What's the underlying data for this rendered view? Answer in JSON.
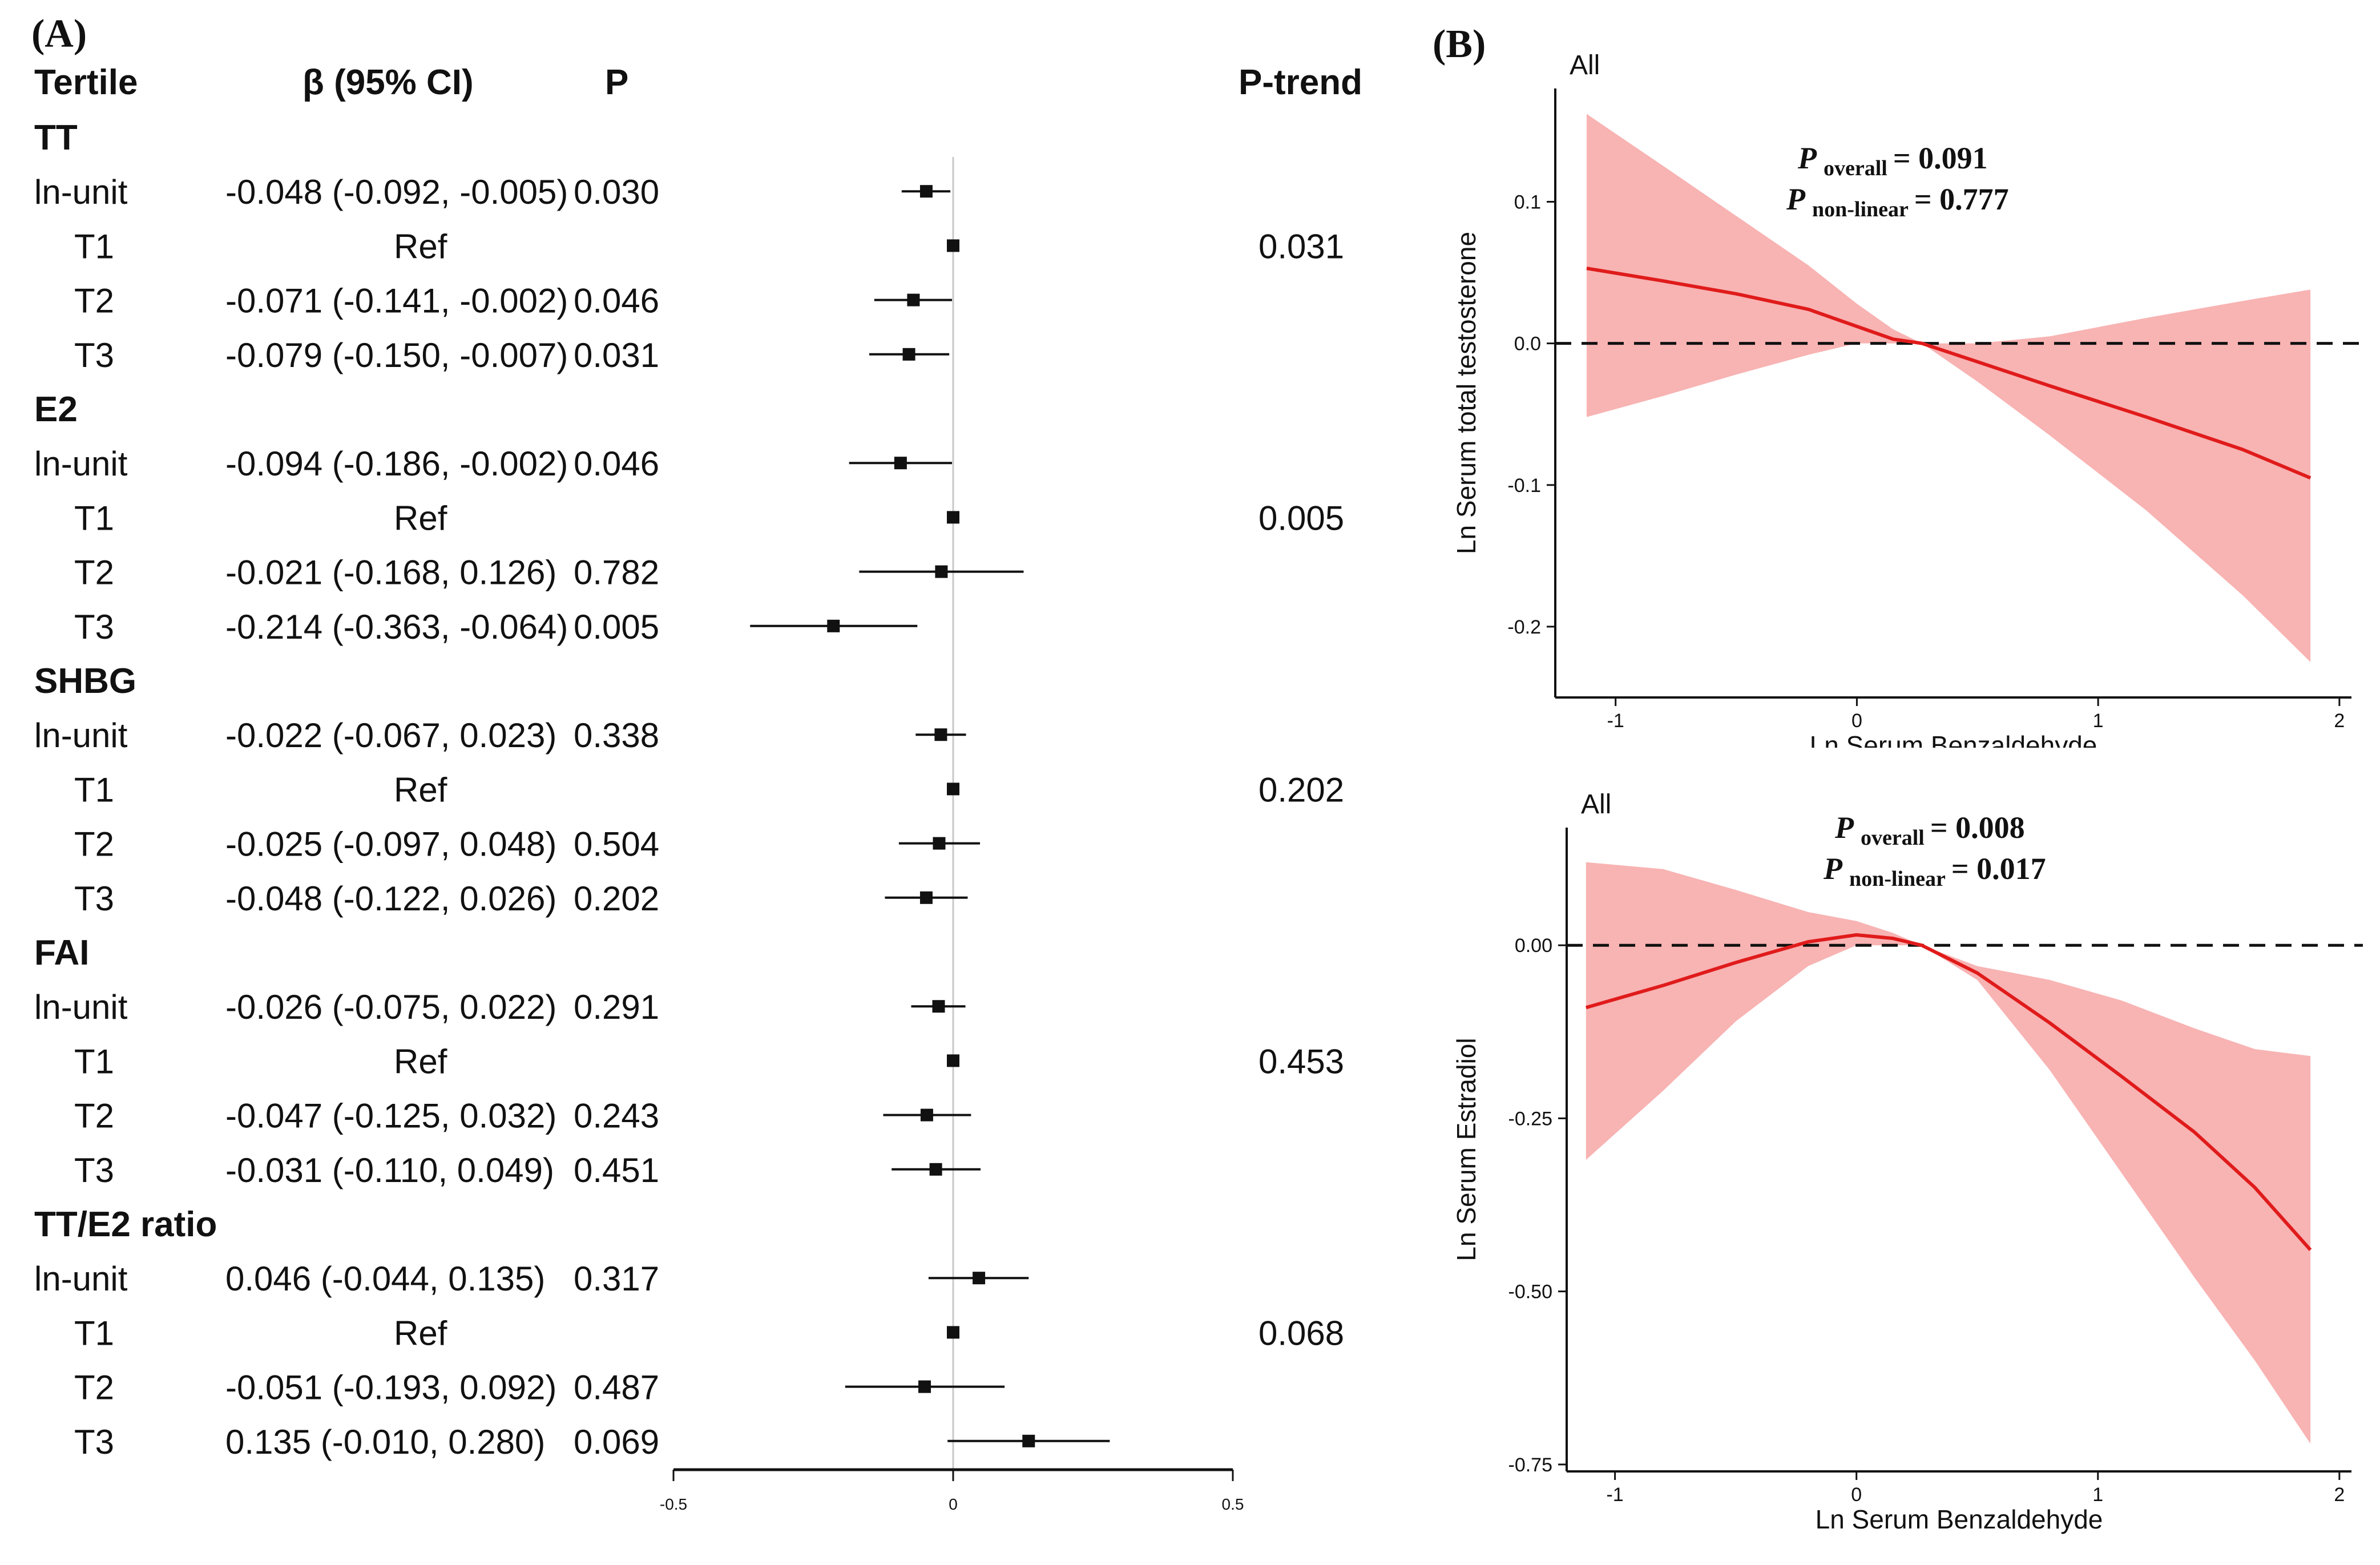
{
  "forest": {
    "panel_label": "(A)",
    "headers": {
      "group": "Tertile",
      "beta": "β (95% CI)",
      "p": "P",
      "ptrend": "P-trend"
    },
    "axis": {
      "ticks": [
        -0.5,
        0,
        0.5
      ],
      "tick_labels": [
        "-0.5",
        "0",
        "0.5"
      ],
      "xlim": [
        -0.5,
        0.5
      ]
    },
    "groups": [
      {
        "name": "TT",
        "p_trend": "0.031",
        "rows": [
          {
            "label": "ln-unit",
            "beta_text": "-0.048 (-0.092, -0.005)",
            "p": "0.030",
            "est": -0.048,
            "lo": -0.092,
            "hi": -0.005
          },
          {
            "label": "T1",
            "beta_text": "Ref",
            "p": "",
            "est": 0,
            "lo": 0,
            "hi": 0
          },
          {
            "label": "T2",
            "beta_text": "-0.071 (-0.141, -0.002)",
            "p": "0.046",
            "est": -0.071,
            "lo": -0.141,
            "hi": -0.002
          },
          {
            "label": "T3",
            "beta_text": "-0.079 (-0.150, -0.007)",
            "p": "0.031",
            "est": -0.079,
            "lo": -0.15,
            "hi": -0.007
          }
        ]
      },
      {
        "name": "E2",
        "p_trend": "0.005",
        "rows": [
          {
            "label": "ln-unit",
            "beta_text": "-0.094 (-0.186, -0.002)",
            "p": "0.046",
            "est": -0.094,
            "lo": -0.186,
            "hi": -0.002
          },
          {
            "label": "T1",
            "beta_text": "Ref",
            "p": "",
            "est": 0,
            "lo": 0,
            "hi": 0
          },
          {
            "label": "T2",
            "beta_text": "-0.021 (-0.168, 0.126)",
            "p": "0.782",
            "est": -0.021,
            "lo": -0.168,
            "hi": 0.126
          },
          {
            "label": "T3",
            "beta_text": "-0.214 (-0.363, -0.064)",
            "p": "0.005",
            "est": -0.214,
            "lo": -0.363,
            "hi": -0.064
          }
        ]
      },
      {
        "name": "SHBG",
        "p_trend": "0.202",
        "rows": [
          {
            "label": "ln-unit",
            "beta_text": "-0.022 (-0.067, 0.023)",
            "p": "0.338",
            "est": -0.022,
            "lo": -0.067,
            "hi": 0.023
          },
          {
            "label": "T1",
            "beta_text": "Ref",
            "p": "",
            "est": 0,
            "lo": 0,
            "hi": 0
          },
          {
            "label": "T2",
            "beta_text": "-0.025 (-0.097, 0.048)",
            "p": "0.504",
            "est": -0.025,
            "lo": -0.097,
            "hi": 0.048
          },
          {
            "label": "T3",
            "beta_text": "-0.048 (-0.122, 0.026)",
            "p": "0.202",
            "est": -0.048,
            "lo": -0.122,
            "hi": 0.026
          }
        ]
      },
      {
        "name": "FAI",
        "p_trend": "0.453",
        "rows": [
          {
            "label": "ln-unit",
            "beta_text": "-0.026 (-0.075, 0.022)",
            "p": "0.291",
            "est": -0.026,
            "lo": -0.075,
            "hi": 0.022
          },
          {
            "label": "T1",
            "beta_text": "Ref",
            "p": "",
            "est": 0,
            "lo": 0,
            "hi": 0
          },
          {
            "label": "T2",
            "beta_text": "-0.047 (-0.125, 0.032)",
            "p": "0.243",
            "est": -0.047,
            "lo": -0.125,
            "hi": 0.032
          },
          {
            "label": "T3",
            "beta_text": "-0.031 (-0.110, 0.049)",
            "p": "0.451",
            "est": -0.031,
            "lo": -0.11,
            "hi": 0.049
          }
        ]
      },
      {
        "name": "TT/E2 ratio",
        "p_trend": "0.068",
        "rows": [
          {
            "label": "ln-unit",
            "beta_text": "0.046 (-0.044, 0.135)",
            "p": "0.317",
            "est": 0.046,
            "lo": -0.044,
            "hi": 0.135
          },
          {
            "label": "T1",
            "beta_text": "Ref",
            "p": "",
            "est": 0,
            "lo": 0,
            "hi": 0
          },
          {
            "label": "T2",
            "beta_text": "-0.051 (-0.193, 0.092)",
            "p": "0.487",
            "est": -0.051,
            "lo": -0.193,
            "hi": 0.092
          },
          {
            "label": "T3",
            "beta_text": "0.135 (-0.010, 0.280)",
            "p": "0.069",
            "est": 0.135,
            "lo": -0.01,
            "hi": 0.28
          }
        ]
      }
    ]
  },
  "chart_data": [
    {
      "type": "line",
      "panel_label": "(B)",
      "subtitle": "All",
      "xlabel": "Ln Serum Benzaldehyde",
      "ylabel": "Ln Serum total testosterone",
      "xlim": [
        -1.25,
        2.05
      ],
      "ylim": [
        -0.25,
        0.18
      ],
      "xticks": [
        -1,
        0,
        1,
        2
      ],
      "xtick_labels": [
        "-1",
        "0",
        "1",
        "2"
      ],
      "yticks": [
        -0.2,
        -0.1,
        0.0,
        0.1
      ],
      "ytick_labels": [
        "-0.2",
        "-0.1",
        "0.0",
        "0.1"
      ],
      "reference_y": 0,
      "p_overall_label": "overall",
      "p_overall_value": "= 0.091",
      "p_nonlinear_label": "non-linear",
      "p_nonlinear_value": "= 0.777",
      "series": [
        {
          "name": "estimate",
          "x": [
            -1.12,
            -0.8,
            -0.5,
            -0.2,
            0.0,
            0.15,
            0.27,
            0.5,
            0.8,
            1.2,
            1.6,
            1.88
          ],
          "y": [
            0.053,
            0.044,
            0.035,
            0.024,
            0.012,
            0.003,
            0.0,
            -0.013,
            -0.03,
            -0.052,
            -0.075,
            -0.095
          ],
          "lower": [
            -0.052,
            -0.037,
            -0.022,
            -0.008,
            0.0,
            0.0,
            0.0,
            -0.027,
            -0.065,
            -0.118,
            -0.178,
            -0.225
          ],
          "upper": [
            0.162,
            0.125,
            0.09,
            0.055,
            0.028,
            0.01,
            0.0,
            0.0,
            0.005,
            0.018,
            0.03,
            0.038
          ]
        }
      ]
    },
    {
      "type": "line",
      "subtitle": "All",
      "xlabel": "Ln Serum Benzaldehyde",
      "ylabel": "Ln Serum Estradiol",
      "xlim": [
        -1.2,
        2.05
      ],
      "ylim": [
        -0.76,
        0.17
      ],
      "xticks": [
        -1,
        0,
        1,
        2
      ],
      "xtick_labels": [
        "-1",
        "0",
        "1",
        "2"
      ],
      "yticks": [
        -0.75,
        -0.5,
        -0.25,
        0.0
      ],
      "ytick_labels": [
        "-0.75",
        "-0.50",
        "-0.25",
        "0.00"
      ],
      "reference_y": 0,
      "p_overall_label": "overall",
      "p_overall_value": "= 0.008",
      "p_nonlinear_label": "non-linear",
      "p_nonlinear_value": "= 0.017",
      "series": [
        {
          "name": "estimate",
          "x": [
            -1.12,
            -0.8,
            -0.5,
            -0.2,
            0.0,
            0.15,
            0.27,
            0.5,
            0.8,
            1.1,
            1.4,
            1.65,
            1.88
          ],
          "y": [
            -0.09,
            -0.058,
            -0.025,
            0.005,
            0.015,
            0.01,
            0.0,
            -0.04,
            -0.112,
            -0.19,
            -0.27,
            -0.35,
            -0.44
          ],
          "lower": [
            -0.31,
            -0.21,
            -0.11,
            -0.03,
            0.0,
            0.0,
            0.0,
            -0.05,
            -0.18,
            -0.33,
            -0.48,
            -0.6,
            -0.72
          ],
          "upper": [
            0.12,
            0.11,
            0.08,
            0.048,
            0.035,
            0.018,
            0.0,
            -0.03,
            -0.05,
            -0.08,
            -0.12,
            -0.15,
            -0.16
          ]
        }
      ]
    }
  ]
}
